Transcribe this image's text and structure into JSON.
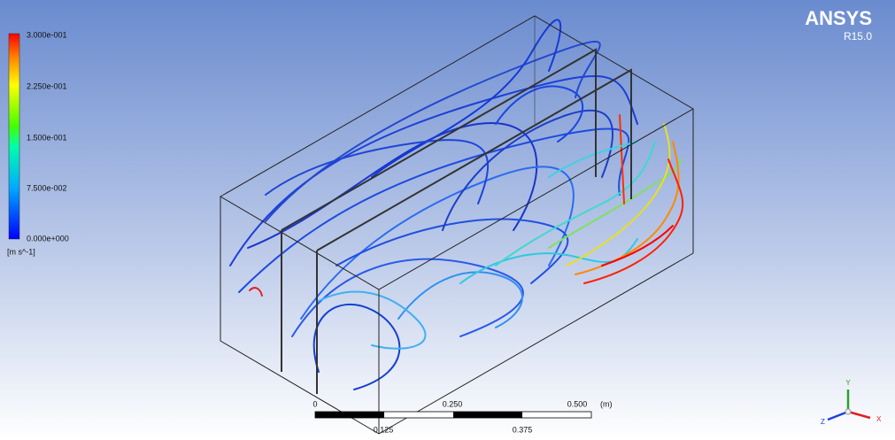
{
  "logo": {
    "brand": "ANSYS",
    "version": "R15.0"
  },
  "legend": {
    "labels": [
      "3.000e-001",
      "2.250e-001",
      "1.500e-001",
      "7.500e-002",
      "0.000e+000"
    ],
    "unit": "[m s^-1]"
  },
  "scale_bar": {
    "top_labels": [
      "0",
      "0.250",
      "0.500"
    ],
    "unit": "(m)",
    "bottom_labels": [
      "0.125",
      "0.375"
    ]
  },
  "triad": {
    "y": "Y",
    "x": "X",
    "z": "Z"
  }
}
